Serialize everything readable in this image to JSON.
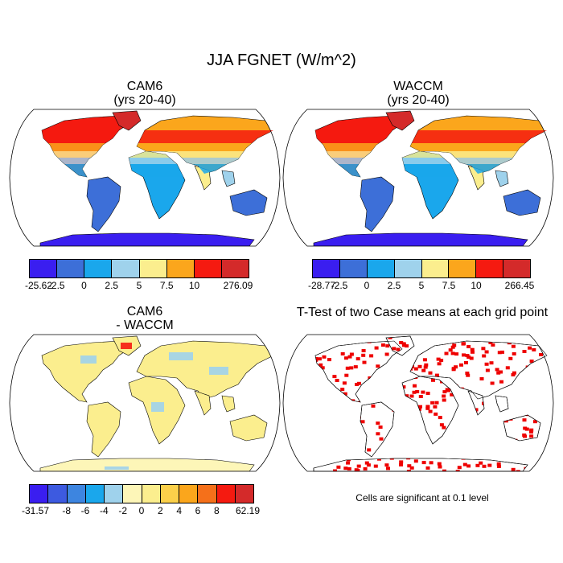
{
  "title": "JJA FGNET (W/m^2)",
  "panels": {
    "cam6": {
      "title": "CAM6",
      "subtitle": "(yrs 20-40)"
    },
    "waccm": {
      "title": "WACCM",
      "subtitle": "(yrs 20-40)"
    },
    "diff": {
      "title": "CAM6",
      "subtitle": "- WACCM"
    },
    "ttest": {
      "title": "T-Test of two Case means at each grid point"
    }
  },
  "colorbar_main": {
    "colors": [
      "#3a1ef0",
      "#3d6fd8",
      "#1aa7ec",
      "#9fd2ec",
      "#fbee8e",
      "#fba61c",
      "#f51a10",
      "#d42a2a"
    ],
    "cam6_labels": [
      "-25.62",
      "-2.5",
      "0",
      "2.5",
      "5",
      "7.5",
      "10",
      "276.09"
    ],
    "waccm_labels": [
      "-28.77",
      "-2.5",
      "0",
      "2.5",
      "5",
      "7.5",
      "10",
      "266.45"
    ]
  },
  "colorbar_diff": {
    "colors": [
      "#3a1ef0",
      "#3d5ae0",
      "#3d85e0",
      "#1aa7ec",
      "#9fd2ec",
      "#fdf6b8",
      "#fbee8e",
      "#fbd04a",
      "#fba61c",
      "#f5701a",
      "#f51a10",
      "#d42a2a"
    ],
    "labels": [
      "-31.57",
      "-8",
      "-6",
      "-4",
      "-2",
      "0",
      "2",
      "4",
      "6",
      "8",
      "62.19"
    ]
  },
  "ttest_note": "Cells are significant at 0.1 level",
  "significance_color": "#ee0000"
}
